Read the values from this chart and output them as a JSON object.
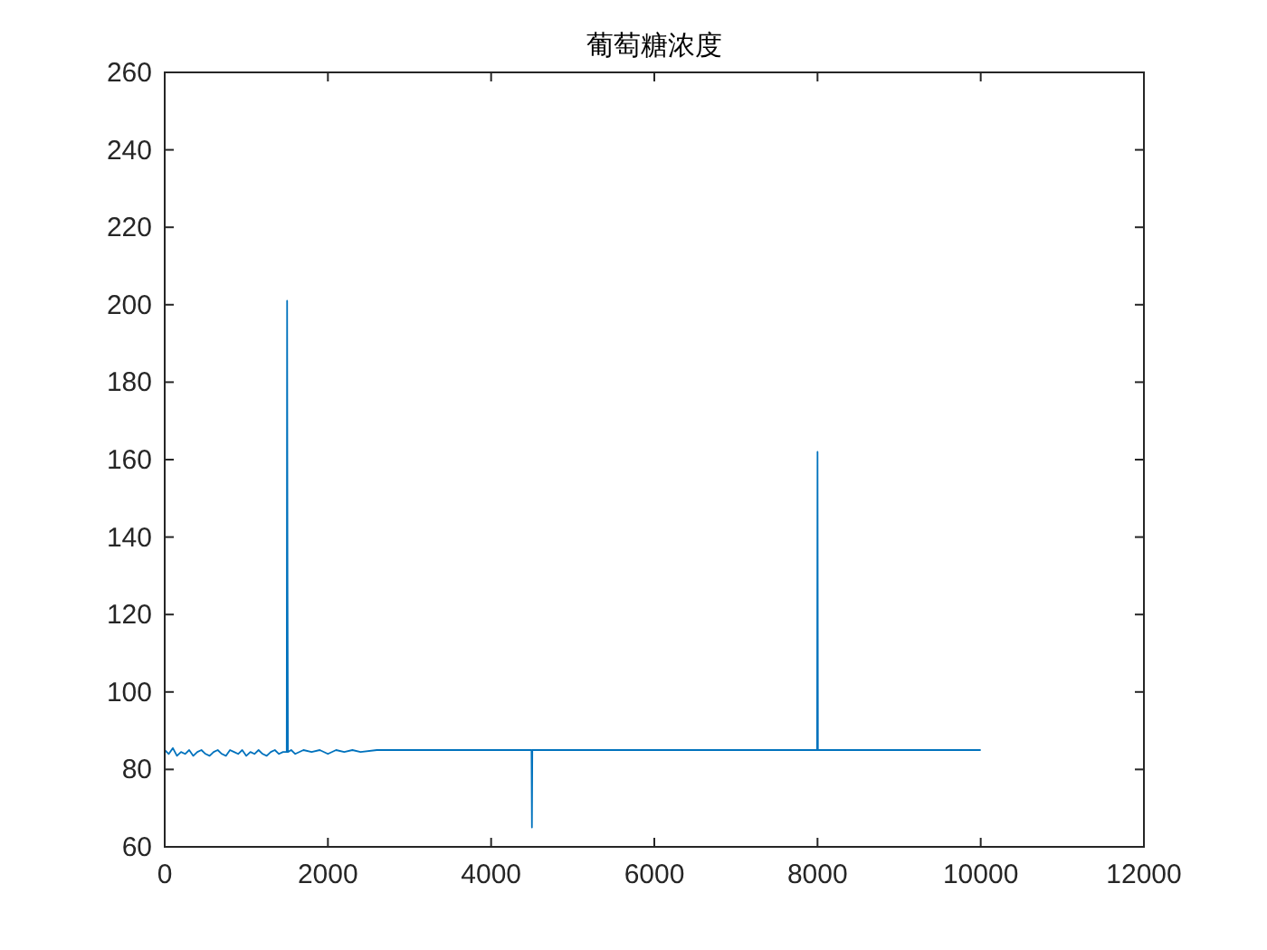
{
  "chart_data": {
    "type": "line",
    "title": "葡萄糖浓度",
    "x": [
      0,
      50,
      100,
      150,
      200,
      250,
      300,
      350,
      400,
      450,
      500,
      550,
      600,
      650,
      700,
      750,
      800,
      850,
      900,
      950,
      1000,
      1050,
      1100,
      1150,
      1200,
      1250,
      1300,
      1350,
      1400,
      1450,
      1495,
      1500,
      1505,
      1510,
      1550,
      1600,
      1700,
      1800,
      1900,
      2000,
      2100,
      2200,
      2300,
      2400,
      2600,
      2800,
      3000,
      3300,
      3600,
      3900,
      4200,
      4495,
      4500,
      4505,
      5000,
      6000,
      7000,
      7995,
      8000,
      8005,
      9000,
      10000
    ],
    "series": [
      {
        "color": "#0072bd",
        "values": [
          85,
          84,
          85.5,
          83.5,
          84.5,
          84,
          85,
          83.5,
          84.5,
          85,
          84,
          83.5,
          84.5,
          85,
          84,
          83.5,
          85,
          84.5,
          84,
          85,
          83.5,
          84.5,
          84,
          85,
          84,
          83.5,
          84.5,
          85,
          84,
          84.5,
          84.5,
          201,
          129,
          84.5,
          85,
          84,
          85,
          84.5,
          85,
          84,
          85,
          84.5,
          85,
          84.5,
          85,
          85,
          85,
          85,
          85,
          85,
          85,
          85,
          65,
          85,
          85,
          85,
          85,
          85,
          162,
          85,
          85,
          85
        ]
      }
    ],
    "xlim": [
      0,
      12000
    ],
    "xticks": [
      0,
      2000,
      4000,
      6000,
      8000,
      10000,
      12000
    ],
    "ylim": [
      60,
      260
    ],
    "yticks": [
      60,
      80,
      100,
      120,
      140,
      160,
      180,
      200,
      220,
      240,
      260
    ]
  }
}
